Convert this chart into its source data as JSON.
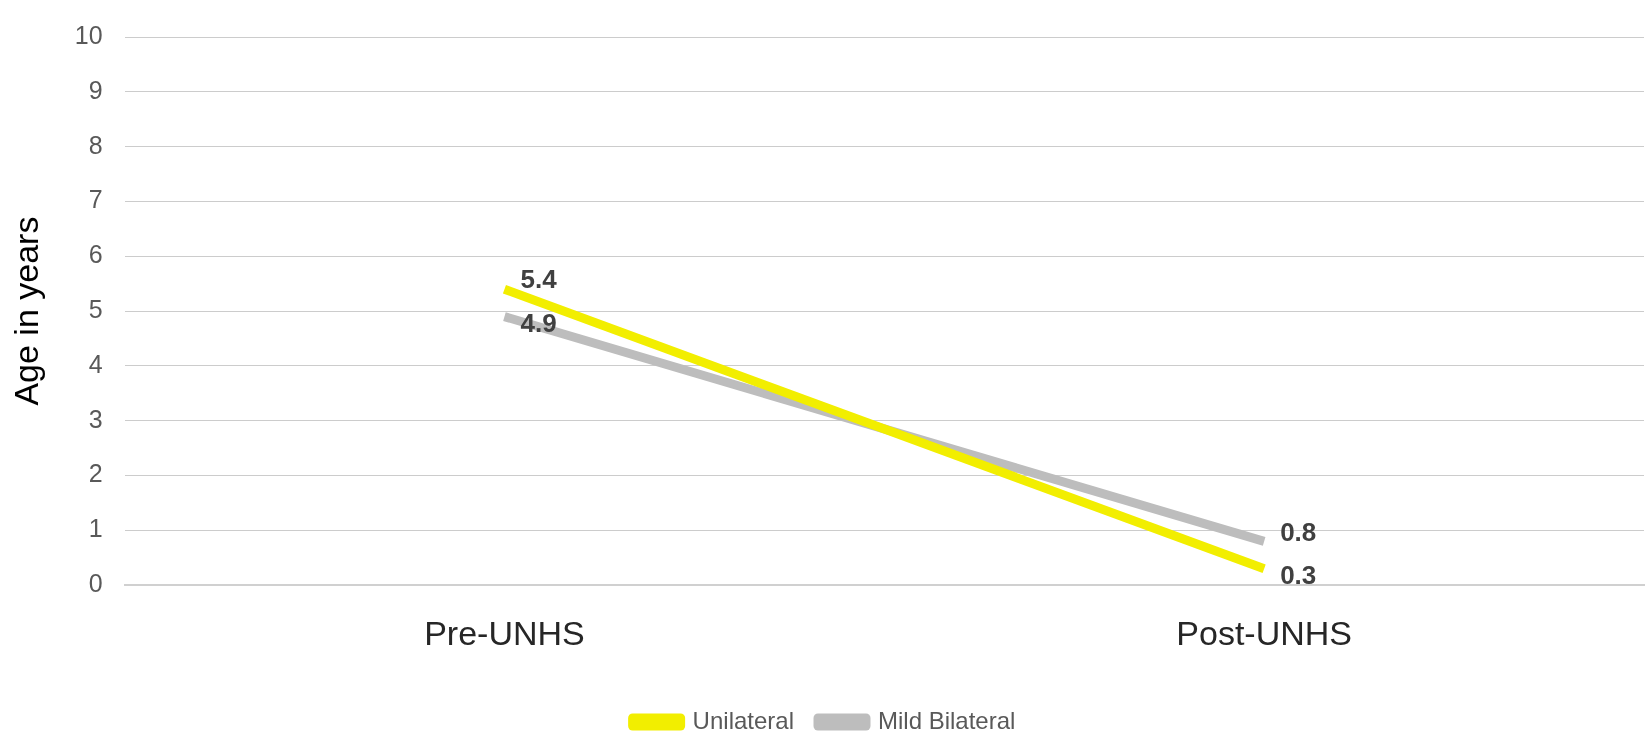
{
  "chart_data": {
    "type": "line",
    "ylabel": "Age in years",
    "categories": [
      "Pre-UNHS",
      "Post-UNHS"
    ],
    "series": [
      {
        "name": "Unilateral",
        "color": "#f2ee00",
        "values": [
          5.4,
          0.3
        ]
      },
      {
        "name": "Mild Bilateral",
        "color": "#bdbdbd",
        "values": [
          4.9,
          0.8
        ]
      }
    ],
    "ylim": [
      0,
      10
    ],
    "yticks": [
      0,
      1,
      2,
      3,
      4,
      5,
      6,
      7,
      8,
      9,
      10
    ],
    "grid": "y",
    "legend": "bottom",
    "marker": "none",
    "line_style": "solid",
    "data_labels": true
  }
}
